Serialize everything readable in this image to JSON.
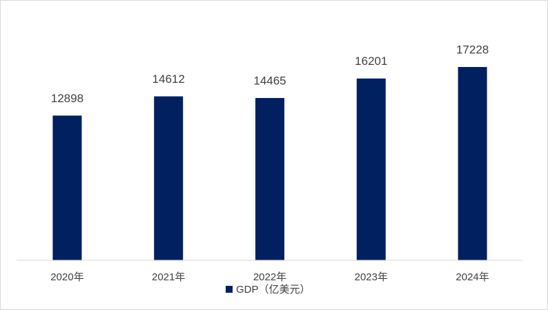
{
  "chart_data": {
    "type": "bar",
    "categories": [
      "2020年",
      "2021年",
      "2022年",
      "2023年",
      "2024年"
    ],
    "series": [
      {
        "name": "GDP（亿美元）",
        "color": "#002060",
        "values": [
          12898,
          14612,
          14465,
          16201,
          17228
        ]
      }
    ],
    "ylim": [
      0,
      20000
    ],
    "legend": "bottom"
  }
}
